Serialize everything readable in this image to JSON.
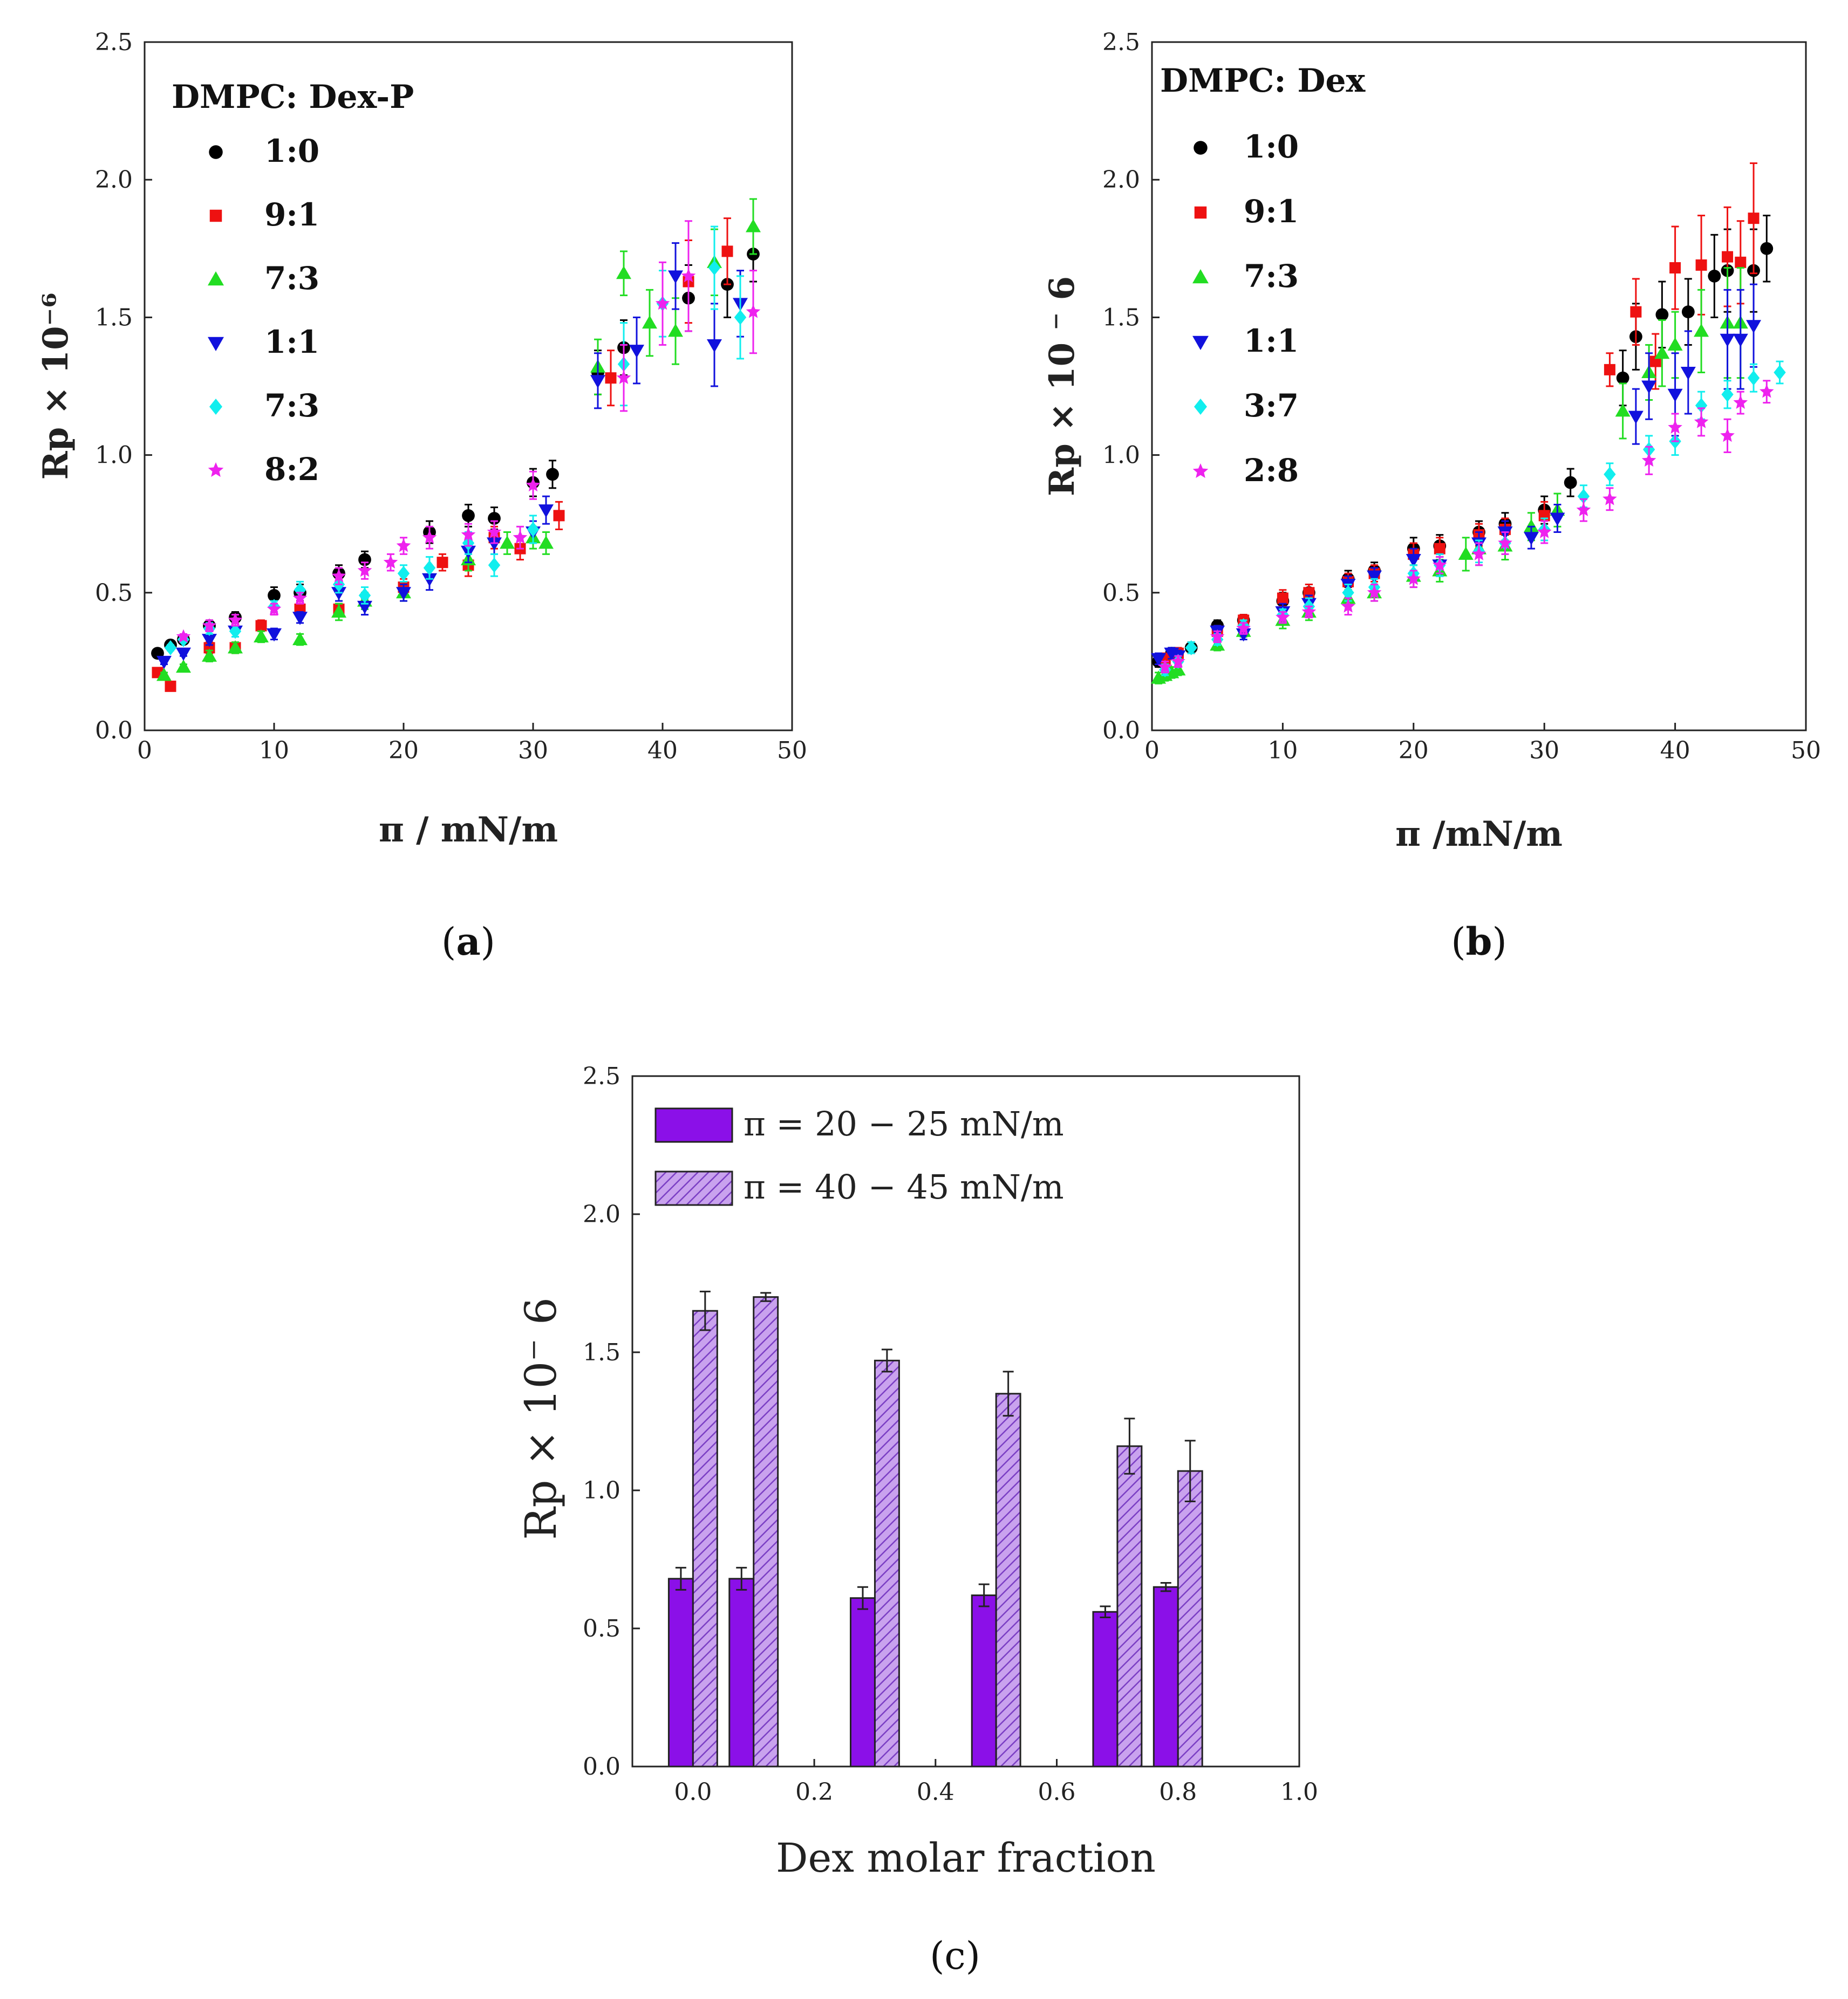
{
  "chart_data": [
    {
      "type": "scatter",
      "panel_label": "(a)",
      "caption_letter": "a",
      "xlabel": "π / mN/m",
      "ylabel": "Rp × 10⁻⁶",
      "xlim": [
        0,
        50
      ],
      "ylim": [
        0,
        2.5
      ],
      "xticks": [
        "0",
        "10",
        "20",
        "30",
        "40",
        "50"
      ],
      "yticks": [
        "0.0",
        "0.5",
        "1.0",
        "1.5",
        "2.0",
        "2.5"
      ],
      "legend_title": "DMPC: Dex-P",
      "legend_position": "top-left",
      "series": [
        {
          "name": "1:0",
          "color": "#000000",
          "marker": "circle",
          "x": [
            1,
            2,
            3,
            5,
            7,
            10,
            12,
            15,
            17,
            22,
            25,
            27,
            30,
            31.5,
            35,
            37,
            42,
            45,
            47
          ],
          "y": [
            0.28,
            0.31,
            0.33,
            0.38,
            0.41,
            0.49,
            0.5,
            0.57,
            0.62,
            0.72,
            0.78,
            0.77,
            0.9,
            0.93,
            1.3,
            1.39,
            1.57,
            1.62,
            1.73
          ],
          "err": [
            0.01,
            0.01,
            0.01,
            0.02,
            0.02,
            0.03,
            0.03,
            0.03,
            0.03,
            0.04,
            0.04,
            0.04,
            0.05,
            0.05,
            0.08,
            0.1,
            0.12,
            0.12,
            0.1
          ]
        },
        {
          "name": "9:1",
          "color": "#ee1111",
          "marker": "square",
          "x": [
            1,
            2,
            5,
            7,
            9,
            12,
            15,
            20,
            23,
            25,
            27,
            29,
            32,
            36,
            42,
            45
          ],
          "y": [
            0.21,
            0.16,
            0.3,
            0.3,
            0.38,
            0.44,
            0.44,
            0.52,
            0.61,
            0.6,
            0.7,
            0.66,
            0.78,
            1.28,
            1.63,
            1.74
          ],
          "err": [
            0.01,
            0.01,
            0.02,
            0.02,
            0.02,
            0.02,
            0.02,
            0.03,
            0.03,
            0.04,
            0.04,
            0.04,
            0.05,
            0.1,
            0.15,
            0.12
          ]
        },
        {
          "name": "7:3",
          "color": "#22dd22",
          "marker": "triangle-up",
          "x": [
            1.5,
            3,
            5,
            7,
            9,
            12,
            15,
            17,
            20,
            25,
            28,
            30,
            31,
            35,
            37,
            39,
            41,
            44,
            47
          ],
          "y": [
            0.2,
            0.23,
            0.27,
            0.3,
            0.34,
            0.33,
            0.43,
            0.47,
            0.5,
            0.62,
            0.68,
            0.7,
            0.68,
            1.32,
            1.66,
            1.48,
            1.45,
            1.7,
            1.83
          ],
          "err": [
            0.01,
            0.01,
            0.02,
            0.02,
            0.02,
            0.02,
            0.03,
            0.03,
            0.03,
            0.04,
            0.04,
            0.04,
            0.04,
            0.1,
            0.08,
            0.12,
            0.12,
            0.12,
            0.1
          ]
        },
        {
          "name": "1:1",
          "color": "#1111dd",
          "marker": "triangle-down",
          "x": [
            1.5,
            3,
            5,
            7,
            10,
            12,
            15,
            17,
            20,
            22,
            25,
            27,
            30,
            31,
            35,
            38,
            41,
            44,
            46
          ],
          "y": [
            0.25,
            0.28,
            0.33,
            0.36,
            0.35,
            0.41,
            0.5,
            0.45,
            0.5,
            0.55,
            0.65,
            0.68,
            0.72,
            0.8,
            1.27,
            1.38,
            1.65,
            1.4,
            1.55
          ],
          "err": [
            0.01,
            0.01,
            0.02,
            0.02,
            0.02,
            0.02,
            0.03,
            0.03,
            0.03,
            0.04,
            0.04,
            0.04,
            0.04,
            0.05,
            0.1,
            0.12,
            0.12,
            0.15,
            0.12
          ]
        },
        {
          "name": "7:3",
          "color": "#11eeee",
          "marker": "diamond",
          "x": [
            2,
            3,
            5,
            7,
            10,
            12,
            15,
            17,
            20,
            22,
            25,
            27,
            30,
            37,
            40,
            44,
            46
          ],
          "y": [
            0.3,
            0.33,
            0.37,
            0.36,
            0.45,
            0.51,
            0.53,
            0.49,
            0.57,
            0.59,
            0.68,
            0.6,
            0.73,
            1.33,
            1.55,
            1.68,
            1.5
          ],
          "err": [
            0.01,
            0.01,
            0.02,
            0.02,
            0.02,
            0.03,
            0.03,
            0.03,
            0.03,
            0.04,
            0.04,
            0.04,
            0.05,
            0.15,
            0.12,
            0.15,
            0.15
          ]
        },
        {
          "name": "8:2",
          "color": "#ee22ee",
          "marker": "star",
          "x": [
            3,
            5,
            7,
            10,
            12,
            15,
            17,
            19,
            20,
            22,
            25,
            27,
            29,
            30,
            37,
            40,
            42,
            47
          ],
          "y": [
            0.34,
            0.38,
            0.4,
            0.44,
            0.48,
            0.56,
            0.58,
            0.61,
            0.67,
            0.7,
            0.71,
            0.72,
            0.7,
            0.89,
            1.28,
            1.55,
            1.65,
            1.52
          ],
          "err": [
            0.01,
            0.02,
            0.02,
            0.02,
            0.02,
            0.03,
            0.03,
            0.03,
            0.03,
            0.04,
            0.04,
            0.04,
            0.04,
            0.05,
            0.12,
            0.15,
            0.2,
            0.15
          ]
        }
      ]
    },
    {
      "type": "scatter",
      "panel_label": "(b)",
      "caption_letter": "b",
      "xlabel": "π /mN/m",
      "ylabel": "Rp × 10 ⁻ 6",
      "xlim": [
        0,
        50
      ],
      "ylim": [
        0,
        2.5
      ],
      "xticks": [
        "0",
        "10",
        "20",
        "30",
        "40",
        "50"
      ],
      "yticks": [
        "0.0",
        "0.5",
        "1.0",
        "1.5",
        "2.0",
        "2.5"
      ],
      "legend_title": "DMPC: Dex",
      "legend_position": "top-left",
      "series": [
        {
          "name": "1:0",
          "color": "#000000",
          "marker": "circle",
          "x": [
            0.5,
            1.5,
            3,
            5,
            7,
            10,
            12,
            15,
            17,
            20,
            22,
            25,
            27,
            30,
            32,
            36,
            37,
            39,
            41,
            43,
            44,
            46,
            47
          ],
          "y": [
            0.25,
            0.28,
            0.3,
            0.38,
            0.4,
            0.47,
            0.5,
            0.55,
            0.58,
            0.66,
            0.67,
            0.72,
            0.75,
            0.8,
            0.9,
            1.28,
            1.43,
            1.51,
            1.52,
            1.65,
            1.67,
            1.67,
            1.75
          ],
          "err": [
            0.02,
            0.02,
            0.02,
            0.02,
            0.02,
            0.03,
            0.03,
            0.03,
            0.03,
            0.04,
            0.04,
            0.04,
            0.04,
            0.05,
            0.05,
            0.1,
            0.12,
            0.12,
            0.12,
            0.15,
            0.15,
            0.15,
            0.12
          ]
        },
        {
          "name": "9:1",
          "color": "#ee1111",
          "marker": "square",
          "x": [
            1,
            2,
            5,
            7,
            10,
            12,
            15,
            17,
            20,
            22,
            25,
            27,
            30,
            35,
            37,
            38.5,
            40,
            42,
            44,
            45,
            46
          ],
          "y": [
            0.26,
            0.28,
            0.36,
            0.4,
            0.48,
            0.5,
            0.54,
            0.57,
            0.64,
            0.66,
            0.71,
            0.73,
            0.78,
            1.31,
            1.52,
            1.34,
            1.68,
            1.69,
            1.72,
            1.7,
            1.86
          ],
          "err": [
            0.02,
            0.02,
            0.02,
            0.02,
            0.03,
            0.03,
            0.03,
            0.03,
            0.04,
            0.04,
            0.04,
            0.04,
            0.05,
            0.06,
            0.12,
            0.1,
            0.15,
            0.18,
            0.18,
            0.15,
            0.2
          ]
        },
        {
          "name": "7:3",
          "color": "#22dd22",
          "marker": "triangle-up",
          "x": [
            0.5,
            1,
            1.5,
            2,
            5,
            7,
            10,
            12,
            15,
            17,
            20,
            22,
            24,
            25,
            27,
            29,
            31,
            36,
            38,
            39,
            40,
            42,
            44,
            45
          ],
          "y": [
            0.19,
            0.2,
            0.21,
            0.22,
            0.31,
            0.36,
            0.4,
            0.43,
            0.48,
            0.5,
            0.56,
            0.58,
            0.64,
            0.66,
            0.67,
            0.74,
            0.8,
            1.16,
            1.3,
            1.37,
            1.4,
            1.45,
            1.48,
            1.48
          ],
          "err": [
            0.02,
            0.02,
            0.02,
            0.02,
            0.02,
            0.02,
            0.03,
            0.03,
            0.03,
            0.03,
            0.04,
            0.04,
            0.06,
            0.06,
            0.05,
            0.05,
            0.06,
            0.1,
            0.1,
            0.12,
            0.12,
            0.15,
            0.2,
            0.2
          ]
        },
        {
          "name": "1:1",
          "color": "#1111dd",
          "marker": "triangle-down",
          "x": [
            0.5,
            1.5,
            2,
            5,
            7,
            10,
            12,
            15,
            17,
            20,
            22,
            25,
            27,
            29,
            31,
            37,
            38,
            40,
            41,
            44,
            45,
            46
          ],
          "y": [
            0.26,
            0.28,
            0.27,
            0.36,
            0.35,
            0.43,
            0.46,
            0.53,
            0.56,
            0.62,
            0.6,
            0.68,
            0.72,
            0.7,
            0.77,
            1.14,
            1.25,
            1.22,
            1.3,
            1.42,
            1.42,
            1.47
          ],
          "err": [
            0.02,
            0.02,
            0.02,
            0.02,
            0.02,
            0.03,
            0.03,
            0.03,
            0.03,
            0.04,
            0.04,
            0.04,
            0.04,
            0.04,
            0.05,
            0.1,
            0.12,
            0.15,
            0.15,
            0.18,
            0.18,
            0.15
          ]
        },
        {
          "name": "3:7",
          "color": "#11eeee",
          "marker": "diamond",
          "x": [
            1,
            2,
            3,
            5,
            7,
            10,
            12,
            15,
            17,
            20,
            22,
            25,
            27,
            30,
            33,
            35,
            38,
            40,
            42,
            44,
            46,
            48
          ],
          "y": [
            0.22,
            0.25,
            0.3,
            0.33,
            0.38,
            0.42,
            0.45,
            0.5,
            0.52,
            0.57,
            0.6,
            0.65,
            0.68,
            0.73,
            0.85,
            0.93,
            1.02,
            1.05,
            1.18,
            1.22,
            1.28,
            1.3
          ],
          "err": [
            0.02,
            0.02,
            0.02,
            0.02,
            0.02,
            0.02,
            0.03,
            0.03,
            0.03,
            0.03,
            0.04,
            0.04,
            0.04,
            0.04,
            0.04,
            0.04,
            0.05,
            0.05,
            0.05,
            0.05,
            0.05,
            0.04
          ]
        },
        {
          "name": "2:8",
          "color": "#ee22ee",
          "marker": "star",
          "x": [
            1,
            2,
            5,
            7,
            10,
            12,
            15,
            17,
            20,
            22,
            25,
            27,
            30,
            33,
            35,
            38,
            40,
            42,
            44,
            45,
            47
          ],
          "y": [
            0.23,
            0.25,
            0.34,
            0.37,
            0.41,
            0.43,
            0.45,
            0.5,
            0.55,
            0.6,
            0.64,
            0.68,
            0.72,
            0.8,
            0.84,
            0.98,
            1.1,
            1.12,
            1.07,
            1.19,
            1.23
          ],
          "err": [
            0.02,
            0.02,
            0.02,
            0.02,
            0.02,
            0.02,
            0.03,
            0.03,
            0.03,
            0.03,
            0.04,
            0.04,
            0.04,
            0.04,
            0.04,
            0.05,
            0.05,
            0.05,
            0.06,
            0.04,
            0.04
          ]
        }
      ]
    },
    {
      "type": "bar",
      "panel_label": "(c)",
      "caption_letter": "c",
      "xlabel": "Dex molar fraction",
      "ylabel": "Rp × 10⁻ 6",
      "xlim": [
        -0.1,
        1.0
      ],
      "ylim": [
        0,
        2.5
      ],
      "xticks": [
        "0.0",
        "0.2",
        "0.4",
        "0.6",
        "0.8",
        "1.0"
      ],
      "yticks": [
        "0.0",
        "0.5",
        "1.0",
        "1.5",
        "2.0",
        "2.5"
      ],
      "bar_width": 0.04,
      "legend_position": "top-left",
      "x": [
        0.0,
        0.1,
        0.3,
        0.5,
        0.7,
        0.8
      ],
      "series": [
        {
          "name": "π = 20 − 25  mN/m",
          "color": "#8b10e8",
          "pattern": "solid",
          "values": [
            0.68,
            0.68,
            0.61,
            0.62,
            0.56,
            0.65
          ],
          "err": [
            0.04,
            0.04,
            0.04,
            0.04,
            0.02,
            0.015
          ]
        },
        {
          "name": "π = 40 − 45  mN/m",
          "color": "#b07ae0",
          "pattern": "hatched",
          "values": [
            1.65,
            1.7,
            1.47,
            1.35,
            1.16,
            1.07
          ],
          "err": [
            0.07,
            0.015,
            0.04,
            0.08,
            0.1,
            0.11
          ]
        }
      ]
    }
  ]
}
